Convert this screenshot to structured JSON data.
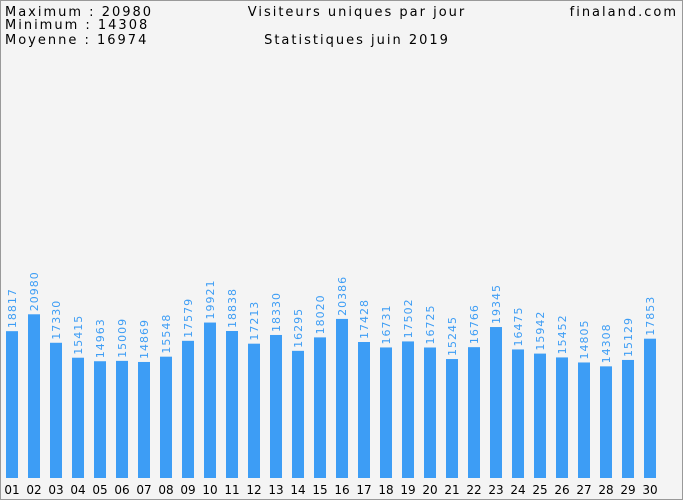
{
  "chart_data": {
    "type": "bar",
    "stats": [
      "Maximum : 20980",
      "Minimum : 14308",
      "Moyenne : 16974"
    ],
    "title": "Visiteurs uniques par jour",
    "site": "finaland.com",
    "subtitle": "Statistiques juin 2019",
    "categories": [
      "01",
      "02",
      "03",
      "04",
      "05",
      "06",
      "07",
      "08",
      "09",
      "10",
      "11",
      "12",
      "13",
      "14",
      "15",
      "16",
      "17",
      "18",
      "19",
      "20",
      "21",
      "22",
      "23",
      "24",
      "25",
      "26",
      "27",
      "28",
      "29",
      "30"
    ],
    "values": [
      18817,
      20980,
      17330,
      15415,
      14963,
      15009,
      14869,
      15548,
      17579,
      19921,
      18838,
      17213,
      18330,
      16295,
      18020,
      20386,
      17428,
      16731,
      17502,
      16725,
      15245,
      16766,
      19345,
      16475,
      15942,
      15452,
      14805,
      14308,
      15129,
      17853
    ],
    "color": "#3d9df5",
    "ylim": [
      0,
      61000
    ]
  }
}
